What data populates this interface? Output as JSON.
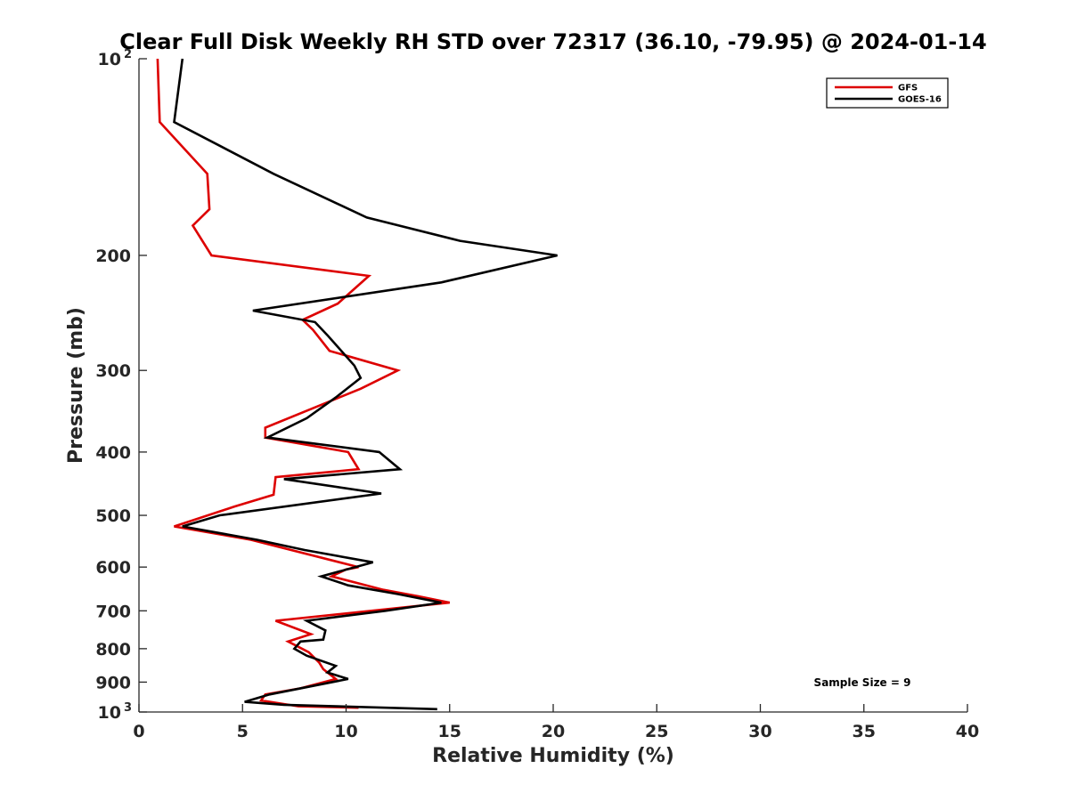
{
  "chart_data": {
    "type": "line",
    "title": "Clear Full Disk Weekly RH STD over 72317 (36.10, -79.95) @ 2024-01-14",
    "xlabel": "Relative Humidity (%)",
    "ylabel": "Pressure (mb)",
    "xlim": [
      0,
      40
    ],
    "ylim": [
      100,
      1000
    ],
    "yscale": "log",
    "y_reversed": true,
    "grid": false,
    "legend_placement": "top-right",
    "x_ticks": [
      "0",
      "5",
      "10",
      "15",
      "20",
      "25",
      "30",
      "35",
      "40"
    ],
    "y_ticks": [
      {
        "value": 100,
        "label": "10",
        "exp": "2"
      },
      {
        "value": 200,
        "label": "200"
      },
      {
        "value": 300,
        "label": "300"
      },
      {
        "value": 400,
        "label": "400"
      },
      {
        "value": 500,
        "label": "500"
      },
      {
        "value": 600,
        "label": "600"
      },
      {
        "value": 700,
        "label": "700"
      },
      {
        "value": 800,
        "label": "800"
      },
      {
        "value": 900,
        "label": "900"
      },
      {
        "value": 1000,
        "label": "10",
        "exp": "3"
      }
    ],
    "annotation": "Sample Size = 9",
    "series": [
      {
        "name": "GFS",
        "color": "#dd0000",
        "points": [
          [
            0.9,
            100
          ],
          [
            1.0,
            125
          ],
          [
            3.3,
            150
          ],
          [
            3.4,
            170
          ],
          [
            2.6,
            180
          ],
          [
            3.5,
            200
          ],
          [
            11.1,
            215
          ],
          [
            9.6,
            237
          ],
          [
            7.9,
            251
          ],
          [
            8.4,
            260
          ],
          [
            9.2,
            280
          ],
          [
            12.5,
            300
          ],
          [
            10.7,
            320
          ],
          [
            6.1,
            367
          ],
          [
            6.1,
            380
          ],
          [
            10.1,
            400
          ],
          [
            10.6,
            425
          ],
          [
            6.6,
            437
          ],
          [
            6.5,
            465
          ],
          [
            4.6,
            485
          ],
          [
            1.7,
            520
          ],
          [
            5.4,
            545
          ],
          [
            10.6,
            600
          ],
          [
            10.0,
            605
          ],
          [
            9.3,
            620
          ],
          [
            11.8,
            650
          ],
          [
            13.5,
            665
          ],
          [
            15.0,
            680
          ],
          [
            6.6,
            725
          ],
          [
            8.3,
            760
          ],
          [
            7.2,
            780
          ],
          [
            8.2,
            810
          ],
          [
            8.7,
            840
          ],
          [
            8.9,
            860
          ],
          [
            9.5,
            890
          ],
          [
            7.8,
            920
          ],
          [
            6.1,
            940
          ],
          [
            5.9,
            960
          ],
          [
            7.7,
            980
          ],
          [
            10.6,
            985
          ]
        ]
      },
      {
        "name": "GOES-16",
        "color": "#000000",
        "points": [
          [
            2.1,
            100
          ],
          [
            1.7,
            125
          ],
          [
            6.5,
            150
          ],
          [
            11.0,
            175
          ],
          [
            15.5,
            190
          ],
          [
            20.2,
            200
          ],
          [
            14.6,
            220
          ],
          [
            5.5,
            243
          ],
          [
            8.5,
            253
          ],
          [
            9.1,
            265
          ],
          [
            10.4,
            295
          ],
          [
            10.7,
            308
          ],
          [
            9.5,
            330
          ],
          [
            8.1,
            355
          ],
          [
            6.2,
            380
          ],
          [
            11.6,
            400
          ],
          [
            12.6,
            425
          ],
          [
            7.0,
            440
          ],
          [
            11.7,
            463
          ],
          [
            3.9,
            500
          ],
          [
            2.1,
            520
          ],
          [
            5.7,
            545
          ],
          [
            8.0,
            565
          ],
          [
            11.3,
            590
          ],
          [
            8.8,
            620
          ],
          [
            10.1,
            640
          ],
          [
            12.5,
            660
          ],
          [
            14.6,
            680
          ],
          [
            11.9,
            700
          ],
          [
            8.1,
            725
          ],
          [
            9.0,
            750
          ],
          [
            8.9,
            775
          ],
          [
            7.8,
            780
          ],
          [
            7.5,
            800
          ],
          [
            8.1,
            820
          ],
          [
            9.5,
            850
          ],
          [
            9.1,
            870
          ],
          [
            10.1,
            890
          ],
          [
            6.3,
            940
          ],
          [
            5.1,
            965
          ],
          [
            7.0,
            975
          ],
          [
            14.4,
            990
          ]
        ]
      }
    ]
  }
}
